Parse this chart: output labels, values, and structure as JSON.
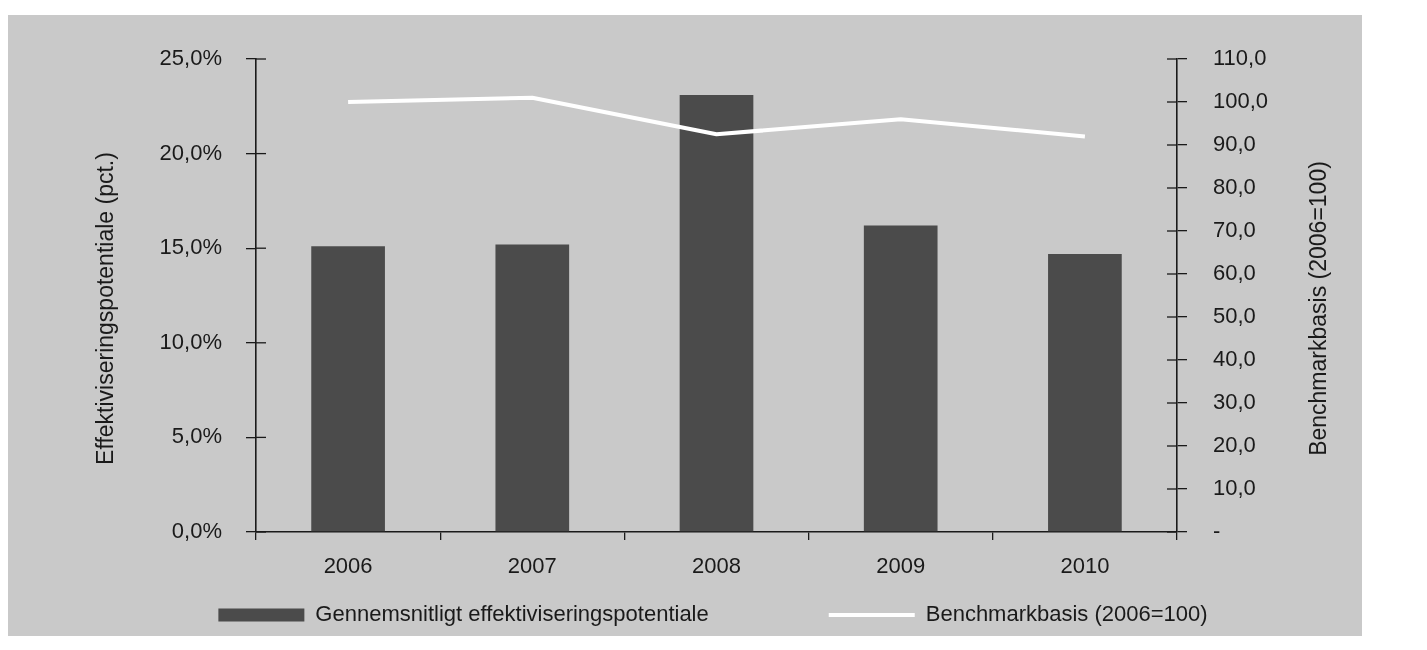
{
  "chart_data": {
    "type": "bar",
    "categories": [
      "2006",
      "2007",
      "2008",
      "2009",
      "2010"
    ],
    "ylabel": "Effektiviseringspotentiale (pct.)",
    "y2label": "Benchmarkbasis (2006=100)",
    "series": [
      {
        "name": "Gennemsnitligt effektiviseringspotentiale",
        "color": "#4b4b4b",
        "values": [
          15.1,
          15.2,
          23.1,
          16.2,
          14.7
        ]
      },
      {
        "name": "Benchmarkbasis (2006=100)",
        "type": "line",
        "axis": "y2",
        "color": "#ffffff",
        "values": [
          100,
          101,
          92.5,
          96,
          92
        ]
      }
    ],
    "ylim": [
      0,
      25
    ],
    "yticks": [
      {
        "value": 0,
        "label": "0,0%"
      },
      {
        "value": 5,
        "label": "5,0%"
      },
      {
        "value": 10,
        "label": "10,0%"
      },
      {
        "value": 15,
        "label": "15,0%"
      },
      {
        "value": 20,
        "label": "20,0%"
      },
      {
        "value": 25,
        "label": "25,0%"
      }
    ],
    "y2lim": [
      0,
      110
    ],
    "y2ticks": [
      {
        "value": 0,
        "label": "-"
      },
      {
        "value": 10,
        "label": "10,0"
      },
      {
        "value": 20,
        "label": "20,0"
      },
      {
        "value": 30,
        "label": "30,0"
      },
      {
        "value": 40,
        "label": "40,0"
      },
      {
        "value": 50,
        "label": "50,0"
      },
      {
        "value": 60,
        "label": "60,0"
      },
      {
        "value": 70,
        "label": "70,0"
      },
      {
        "value": 80,
        "label": "80,0"
      },
      {
        "value": 90,
        "label": "90,0"
      },
      {
        "value": 100,
        "label": "100,0"
      },
      {
        "value": 110,
        "label": "110,0"
      }
    ],
    "grid": false,
    "legend": "bottom",
    "marker": "none",
    "line_style": "solid"
  }
}
